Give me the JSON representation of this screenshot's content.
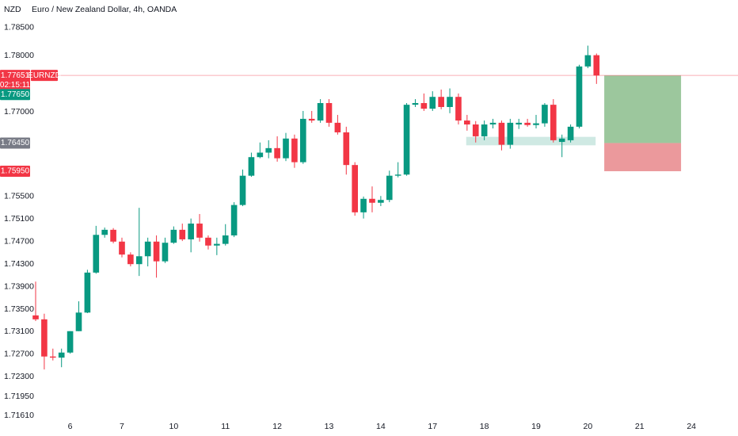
{
  "chart_data": {
    "type": "candlestick",
    "title": "Euro / New Zealand Dollar, 4h, OANDA",
    "y_label": "NZD",
    "open": [
      1.7339,
      1.7332,
      1.7266,
      1.7264,
      1.7273,
      1.7311,
      1.7344,
      1.7415,
      1.7482,
      1.7491,
      1.747,
      1.7447,
      1.743,
      1.7444,
      1.747,
      1.7435,
      1.7468,
      1.7491,
      1.7474,
      1.7502,
      1.7477,
      1.7463,
      1.7466,
      1.7481,
      1.7535,
      1.7587,
      1.762,
      1.7628,
      1.7636,
      1.7618,
      1.7653,
      1.7611,
      1.7688,
      1.7685,
      1.7716,
      1.7681,
      1.7664,
      1.7606,
      1.7522,
      1.7546,
      1.7539,
      1.7544,
      1.7587,
      1.7589,
      1.7713,
      1.7716,
      1.7706,
      1.7727,
      1.7709,
      1.7727,
      1.7685,
      1.7678,
      1.7657,
      1.7678,
      1.7681,
      1.7642,
      1.7678,
      1.7681,
      1.7677,
      1.768,
      1.7713,
      1.7647,
      1.765,
      1.7674,
      1.7781,
      1.7801
    ],
    "high": [
      1.7399,
      1.7342,
      1.728,
      1.728,
      1.7311,
      1.7364,
      1.742,
      1.7498,
      1.7495,
      1.7494,
      1.7477,
      1.7451,
      1.753,
      1.7477,
      1.7481,
      1.7477,
      1.7497,
      1.7502,
      1.7511,
      1.7519,
      1.7481,
      1.7477,
      1.7501,
      1.754,
      1.7598,
      1.7628,
      1.7646,
      1.765,
      1.7657,
      1.7663,
      1.766,
      1.7702,
      1.7702,
      1.7723,
      1.7723,
      1.7695,
      1.7674,
      1.7611,
      1.755,
      1.7568,
      1.7551,
      1.7596,
      1.7611,
      1.7716,
      1.7723,
      1.7733,
      1.7737,
      1.774,
      1.7742,
      1.7733,
      1.7695,
      1.7684,
      1.7685,
      1.7688,
      1.7685,
      1.7688,
      1.7688,
      1.7688,
      1.7695,
      1.7716,
      1.7723,
      1.766,
      1.7678,
      1.7784,
      1.7818,
      1.7804
    ],
    "low": [
      1.7329,
      1.7243,
      1.7259,
      1.7247,
      1.7271,
      1.7311,
      1.7343,
      1.7413,
      1.7477,
      1.7467,
      1.7442,
      1.7426,
      1.7409,
      1.7426,
      1.7406,
      1.7432,
      1.7466,
      1.7471,
      1.7451,
      1.747,
      1.7456,
      1.7446,
      1.7463,
      1.7478,
      1.7533,
      1.7585,
      1.7618,
      1.7618,
      1.7612,
      1.7613,
      1.7601,
      1.7608,
      1.7681,
      1.7681,
      1.7674,
      1.766,
      1.7589,
      1.7516,
      1.7511,
      1.7522,
      1.7533,
      1.754,
      1.7584,
      1.7587,
      1.7709,
      1.7702,
      1.7702,
      1.7705,
      1.7698,
      1.7678,
      1.7667,
      1.7646,
      1.765,
      1.7671,
      1.7632,
      1.7635,
      1.767,
      1.7674,
      1.7671,
      1.7674,
      1.7646,
      1.762,
      1.7646,
      1.7671,
      1.7778,
      1.775
    ],
    "close": [
      1.7332,
      1.7266,
      1.7264,
      1.7273,
      1.7311,
      1.7344,
      1.7415,
      1.7482,
      1.7491,
      1.747,
      1.7447,
      1.743,
      1.7444,
      1.747,
      1.7435,
      1.7468,
      1.7491,
      1.7474,
      1.7502,
      1.7477,
      1.7463,
      1.7466,
      1.7481,
      1.7535,
      1.7587,
      1.762,
      1.7628,
      1.7636,
      1.7618,
      1.7653,
      1.7611,
      1.7688,
      1.7685,
      1.7716,
      1.7681,
      1.7664,
      1.7606,
      1.7522,
      1.7546,
      1.7539,
      1.7544,
      1.7587,
      1.7589,
      1.7713,
      1.7716,
      1.7706,
      1.7727,
      1.7709,
      1.7727,
      1.7685,
      1.7678,
      1.7657,
      1.7678,
      1.7681,
      1.7642,
      1.7681,
      1.7681,
      1.7677,
      1.768,
      1.7713,
      1.765,
      1.7653,
      1.7674,
      1.7781,
      1.7801,
      1.7765
    ],
    "up_color": "#089981",
    "down_color": "#f23645",
    "xlim": [
      -0.46,
      81.4
    ],
    "xticks": [
      {
        "value": 4,
        "label": "6"
      },
      {
        "value": 10,
        "label": "7"
      },
      {
        "value": 16,
        "label": "10"
      },
      {
        "value": 22,
        "label": "11"
      },
      {
        "value": 28,
        "label": "12"
      },
      {
        "value": 34,
        "label": "13"
      },
      {
        "value": 40,
        "label": "14"
      },
      {
        "value": 46,
        "label": "17"
      },
      {
        "value": 52,
        "label": "18"
      },
      {
        "value": 58,
        "label": "19"
      },
      {
        "value": 64,
        "label": "20"
      },
      {
        "value": 70,
        "label": "21"
      },
      {
        "value": 76,
        "label": "24"
      }
    ],
    "ylim": [
      1.7153,
      1.7899
    ],
    "yticks": [
      {
        "value": 1.785,
        "label": "1.78500"
      },
      {
        "value": 1.78,
        "label": "1.78000"
      },
      {
        "value": 1.77,
        "label": "1.77000"
      },
      {
        "value": 1.755,
        "label": "1.75500"
      },
      {
        "value": 1.751,
        "label": "1.75100"
      },
      {
        "value": 1.747,
        "label": "1.74700"
      },
      {
        "value": 1.743,
        "label": "1.74300"
      },
      {
        "value": 1.739,
        "label": "1.73900"
      },
      {
        "value": 1.735,
        "label": "1.73500"
      },
      {
        "value": 1.731,
        "label": "1.73100"
      },
      {
        "value": 1.727,
        "label": "1.72700"
      },
      {
        "value": 1.723,
        "label": "1.72300"
      },
      {
        "value": 1.7195,
        "label": "1.71950"
      },
      {
        "value": 1.7161,
        "label": "1.71610"
      }
    ],
    "current_price": {
      "value": 1.77651,
      "label": "1.77651",
      "symbol": "EURNZD",
      "countdown": "02:15:11",
      "color": "#f23645"
    },
    "zone": {
      "x": [
        49.9,
        64.9
      ],
      "top": 1.7656,
      "bottom": 1.7641,
      "color": "#cfe9e3"
    },
    "position": {
      "x": [
        65.9,
        74.8
      ],
      "take_profit": {
        "value": 1.7765,
        "label": "1.77650"
      },
      "entry": {
        "value": 1.7645,
        "label": "1.76450"
      },
      "stop_loss": {
        "value": 1.7595,
        "label": "1.75950"
      },
      "profit_color": "#9cc79d",
      "loss_color": "#eb999c",
      "entry_color": "#787b86"
    }
  }
}
